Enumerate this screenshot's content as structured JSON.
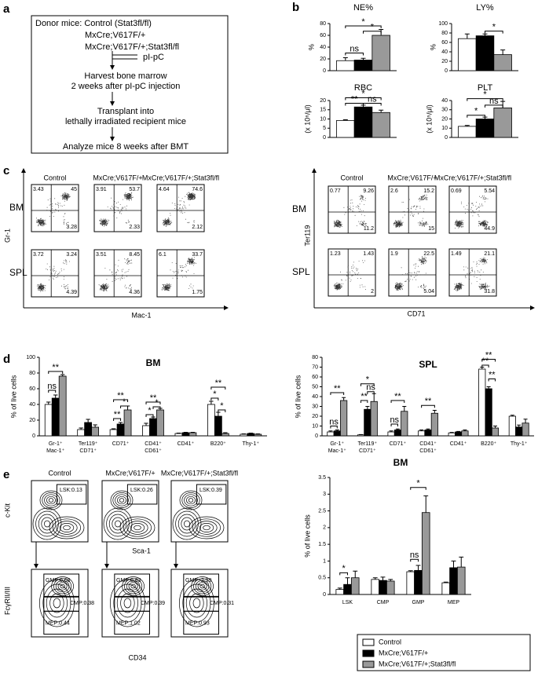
{
  "panel_labels": [
    "a",
    "b",
    "c",
    "d",
    "e"
  ],
  "schema": {
    "donor": [
      "Donor mice: Control (Stat3fl/fl)",
      "MxCre;V617F/+",
      "MxCre;V617F/+;Stat3fl/fl"
    ],
    "treatment": "pI-pC",
    "steps": [
      [
        "Harvest bone marrow",
        "2 weeks after pI-pC injection"
      ],
      [
        "Transplant into",
        "lethally irradiated recipient mice"
      ],
      [
        "Analyze mice 8 weeks after BMT"
      ]
    ]
  },
  "flow_c": [
    {
      "y_label": "Gr-1",
      "x_label": "Mac-1",
      "columns": [
        "Control",
        "MxCre;V617F/+",
        "MxCre;V617F/+;Stat3fl/fl"
      ],
      "rows": [
        {
          "label": "BM",
          "quadrants": [
            [
              "3.43",
              "45",
              "3.28"
            ],
            [
              "3.91",
              "53.7",
              "2.33"
            ],
            [
              "4.64",
              "74.6",
              "2.12"
            ]
          ]
        },
        {
          "label": "SPL",
          "quadrants": [
            [
              "3.72",
              "3.24",
              "4.39"
            ],
            [
              "3.51",
              "8.45",
              "4.36"
            ],
            [
              "6.1",
              "33.7",
              "1.75"
            ]
          ]
        }
      ]
    },
    {
      "y_label": "Ter119",
      "x_label": "CD71",
      "columns": [
        "Control",
        "MxCre;V617F/+",
        "MxCre;V617F/+;Stat3fl/fl"
      ],
      "rows": [
        {
          "label": "BM",
          "quadrants": [
            [
              "0.77",
              "9.26",
              "11.2"
            ],
            [
              "2.6",
              "15.2",
              "15"
            ],
            [
              "0.69",
              "5.54",
              "44.9"
            ]
          ]
        },
        {
          "label": "SPL",
          "quadrants": [
            [
              "1.23",
              "1.43",
              "2"
            ],
            [
              "1.9",
              "22.5",
              "5.04"
            ],
            [
              "1.49",
              "21.1",
              "31.8"
            ]
          ]
        }
      ]
    }
  ],
  "flow_e": {
    "columns": [
      "Control",
      "MxCre;V617F/+",
      "MxCre;V617F/+;Stat3fl/fl"
    ],
    "top": {
      "y_label": "c-Kit",
      "x_label": "Sca-1",
      "gates": [
        "LSK:0.13",
        "LSK:0.26",
        "LSK:0.39"
      ]
    },
    "bottom": {
      "y_label": "FcγRII/III",
      "x_label": "CD34",
      "gates": [
        [
          "GMP:0.68",
          "CMP:0.38",
          "MEP:0.44"
        ],
        [
          "GMP:0.83",
          "CMP:0.39",
          "MEP:1.02"
        ],
        [
          "GMP: 2.99",
          "CMP:0.31",
          "MEP:0.93"
        ]
      ]
    }
  },
  "chart_data": [
    {
      "type": "bar",
      "title": "NE%",
      "y_label": "%",
      "ylim": [
        0,
        80
      ],
      "yticks": [
        0,
        20,
        40,
        60,
        80
      ],
      "series": [
        {
          "color": "#ffffff",
          "values": [
            17
          ],
          "errors": [
            5
          ]
        },
        {
          "color": "#000000",
          "values": [
            18
          ],
          "errors": [
            3
          ]
        },
        {
          "color": "#999999",
          "values": [
            60
          ],
          "errors": [
            10
          ]
        }
      ],
      "annotations": [
        "*",
        "ns",
        "*"
      ]
    },
    {
      "type": "bar",
      "title": "LY%",
      "y_label": "%",
      "ylim": [
        0,
        100
      ],
      "yticks": [
        0,
        20,
        40,
        60,
        80,
        100
      ],
      "series": [
        {
          "color": "#ffffff",
          "values": [
            68
          ],
          "errors": [
            10
          ]
        },
        {
          "color": "#000000",
          "values": [
            74
          ],
          "errors": [
            4
          ]
        },
        {
          "color": "#999999",
          "values": [
            34
          ],
          "errors": [
            10
          ]
        }
      ],
      "annotations": [
        "*"
      ]
    },
    {
      "type": "bar",
      "title": "RBC",
      "y_label": "(x 10⁶/μl)",
      "ylim": [
        0,
        20
      ],
      "yticks": [
        0,
        5,
        10,
        15,
        20
      ],
      "series": [
        {
          "color": "#ffffff",
          "values": [
            9.2
          ],
          "errors": [
            0.4
          ]
        },
        {
          "color": "#000000",
          "values": [
            16.5
          ],
          "errors": [
            1
          ]
        },
        {
          "color": "#999999",
          "values": [
            13.5
          ],
          "errors": [
            1.3
          ]
        }
      ],
      "annotations": [
        "*",
        "**",
        "ns"
      ]
    },
    {
      "type": "bar",
      "title": "PLT",
      "y_label": "(x 10⁵/μl)",
      "ylim": [
        0,
        40
      ],
      "yticks": [
        0,
        10,
        20,
        30,
        40
      ],
      "series": [
        {
          "color": "#ffffff",
          "values": [
            12
          ],
          "errors": [
            1
          ]
        },
        {
          "color": "#000000",
          "values": [
            20
          ],
          "errors": [
            2
          ]
        },
        {
          "color": "#999999",
          "values": [
            32
          ],
          "errors": [
            7
          ]
        }
      ],
      "annotations": [
        "*",
        "*",
        "ns"
      ]
    },
    {
      "type": "bar",
      "title": "BM",
      "y_label": "% of live cells",
      "ylim": [
        0,
        100
      ],
      "yticks": [
        0,
        20,
        40,
        60,
        80,
        100
      ],
      "categories": [
        "Gr-1⁺\nMac-1⁺",
        "Ter119⁺\nCD71⁺",
        "CD71⁺",
        "CD41⁺\nCD61⁺",
        "CD41⁺",
        "B220⁺",
        "Thy-1⁺"
      ],
      "series": [
        {
          "color": "#ffffff",
          "values": [
            40,
            8,
            8,
            13,
            3,
            40,
            2
          ],
          "errors": [
            3,
            2,
            1,
            3,
            0.5,
            4,
            0.5
          ]
        },
        {
          "color": "#000000",
          "values": [
            48,
            17,
            15,
            22,
            4,
            25,
            3
          ],
          "errors": [
            4,
            4,
            2,
            2,
            0.5,
            5,
            0.5
          ]
        },
        {
          "color": "#999999",
          "values": [
            76,
            11,
            33,
            33,
            4,
            3,
            2
          ],
          "errors": [
            2,
            3,
            5,
            2,
            0.5,
            1,
            0.5
          ]
        }
      ],
      "annotations": [
        "**",
        "ns",
        "**",
        "*",
        "**",
        "**",
        "*",
        "*",
        "**",
        "*",
        "*"
      ]
    },
    {
      "type": "bar",
      "title": "SPL",
      "y_label": "% of live cells",
      "ylim": [
        0,
        80
      ],
      "yticks": [
        0,
        10,
        20,
        30,
        40,
        50,
        60,
        70,
        80
      ],
      "categories": [
        "Gr-1⁺\nMac-1⁺",
        "Ter119⁺\nCD71⁺",
        "CD71⁺",
        "CD41⁺\nCD61⁺",
        "CD41⁺",
        "B220⁺",
        "Thy-1⁺"
      ],
      "series": [
        {
          "color": "#ffffff",
          "values": [
            4,
            1,
            4,
            5,
            3,
            68,
            20
          ],
          "errors": [
            1,
            0.3,
            1,
            1,
            0.5,
            2,
            1
          ]
        },
        {
          "color": "#000000",
          "values": [
            5,
            27,
            6,
            6,
            4,
            48,
            9
          ],
          "errors": [
            1,
            3,
            1,
            1,
            0.5,
            2,
            2
          ]
        },
        {
          "color": "#999999",
          "values": [
            36,
            35,
            25,
            23,
            5,
            8,
            13
          ],
          "errors": [
            3,
            8,
            5,
            3,
            1,
            2,
            4
          ]
        }
      ],
      "annotations": [
        "**",
        "ns",
        "*",
        "ns",
        "**",
        "**",
        "ns",
        "**",
        "**",
        "**",
        "**"
      ]
    },
    {
      "type": "bar",
      "title": "BM",
      "y_label": "% of live cells",
      "ylim": [
        0,
        3.5
      ],
      "yticks": [
        0,
        0.5,
        1,
        1.5,
        2,
        2.5,
        3,
        3.5
      ],
      "categories": [
        "LSK",
        "CMP",
        "GMP",
        "MEP"
      ],
      "series": [
        {
          "name": "Control",
          "color": "#ffffff",
          "values": [
            0.15,
            0.45,
            0.68,
            0.35
          ],
          "errors": [
            0.04,
            0.05,
            0.03,
            0.02
          ]
        },
        {
          "name": "MxCre;V617F/+",
          "color": "#000000",
          "values": [
            0.3,
            0.42,
            0.72,
            0.8
          ],
          "errors": [
            0.2,
            0.1,
            0.15,
            0.2
          ]
        },
        {
          "name": "MxCre;V617F/+;Stat3fl/fl",
          "color": "#999999",
          "values": [
            0.5,
            0.4,
            2.45,
            0.82
          ],
          "errors": [
            0.2,
            0.05,
            0.5,
            0.3
          ]
        }
      ],
      "annotations": [
        "*",
        "ns",
        "*"
      ]
    }
  ]
}
